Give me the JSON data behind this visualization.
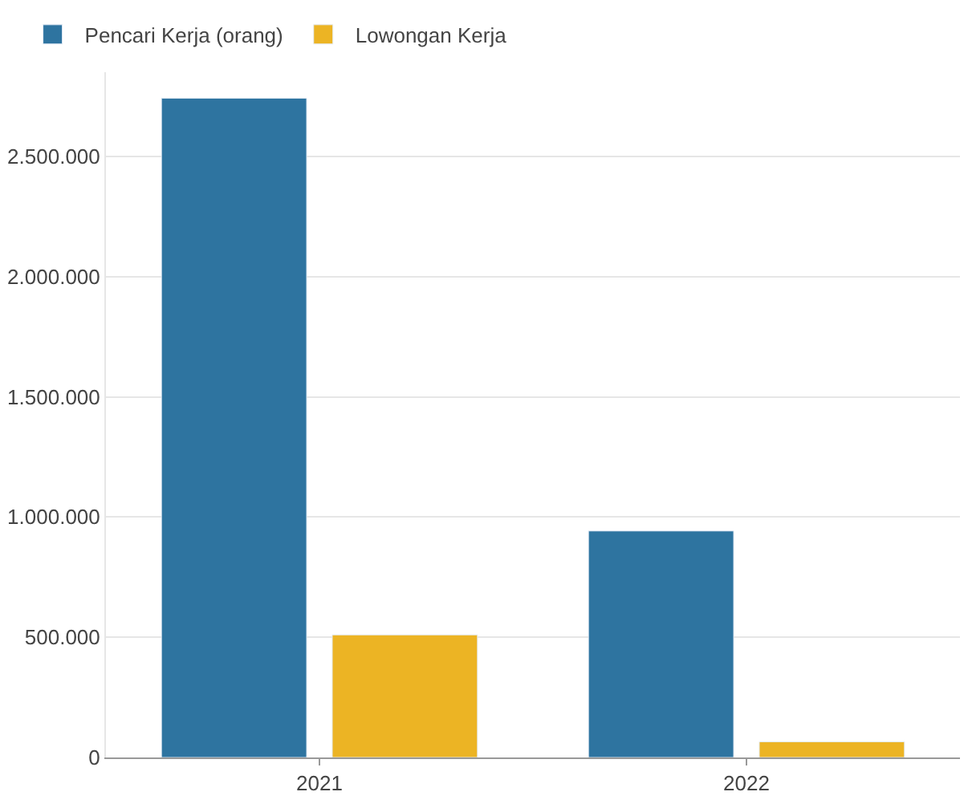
{
  "chart_data": {
    "type": "bar",
    "categories": [
      "2021",
      "2022"
    ],
    "series": [
      {
        "name": "Pencari Kerja (orang)",
        "color": "#2e74a0",
        "values": [
          2742000,
          942000
        ]
      },
      {
        "name": "Lowongan Kerja",
        "color": "#ecb424",
        "values": [
          510000,
          65000
        ]
      }
    ],
    "ylim": [
      0,
      2850000
    ],
    "yticks": [
      0,
      {
        "value": 500000,
        "label": "500.000"
      },
      {
        "value": 1000000,
        "label": "1.000.000"
      },
      {
        "value": 1500000,
        "label": "1.500.000"
      },
      {
        "value": 2000000,
        "label": "2.000.000"
      },
      {
        "value": 2500000,
        "label": "2.500.000"
      }
    ],
    "grid": "y",
    "legend": "top left"
  }
}
